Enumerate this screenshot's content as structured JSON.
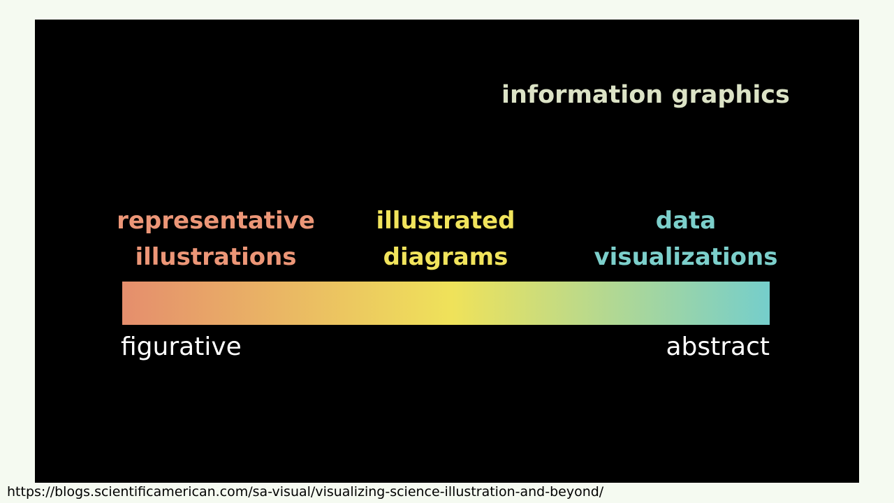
{
  "title": "information graphics",
  "categories": [
    {
      "line1": "representative",
      "line2": "illustrations"
    },
    {
      "line1": "illustrated",
      "line2": "diagrams"
    },
    {
      "line1": "data",
      "line2": "visualizations"
    }
  ],
  "scale": {
    "left_label": "figurative",
    "right_label": "abstract"
  },
  "source_url": "https://blogs.scientificamerican.com/sa-visual/visualizing-science-illustration-and-beyond/",
  "colors": {
    "title": "#dce3c6",
    "representative": "#ec9677",
    "illustrated": "#f1e45c",
    "data": "#7ccfcb",
    "end_labels": "#ffffff",
    "gradient_start": "#e58e6d",
    "gradient_mid": "#efe25a",
    "gradient_end": "#75cecb"
  }
}
